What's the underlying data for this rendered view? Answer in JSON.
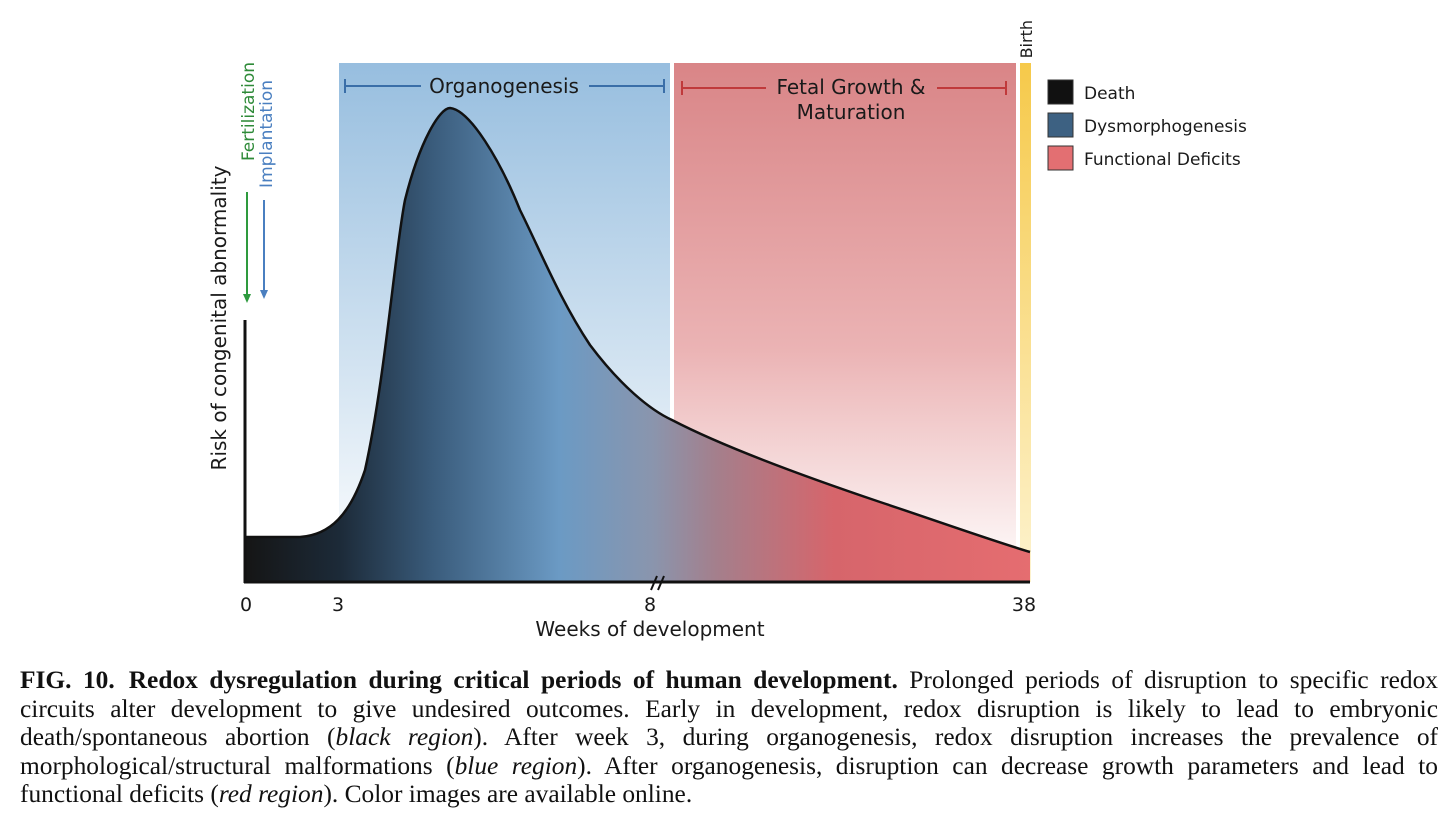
{
  "diagram": {
    "y_axis_label": "Risk of congenital abnormality",
    "x_axis_label": "Weeks of development",
    "x_ticks": [
      "0",
      "3",
      "8",
      "38"
    ],
    "periods": {
      "organogenesis": "Organogenesis",
      "fetal_line1": "Fetal Growth &",
      "fetal_line2": "Maturation"
    },
    "events": {
      "fertilization": "Fertilization",
      "implantation": "Implantation",
      "birth": "Birth"
    },
    "legend": [
      {
        "label": "Death",
        "color": "#111111"
      },
      {
        "label": "Dysmorphogenesis",
        "color": "#3d6182"
      },
      {
        "label": "Functional Deficits",
        "color": "#e36f72"
      }
    ],
    "colors": {
      "organogenesis_band": "#9fc3e0",
      "fetal_band": "#d98587",
      "birth_band": "#f7cf52",
      "fertilization_arrow": "#2e9a3e",
      "implantation_arrow": "#4a7fc0",
      "organogenesis_bracket": "#3a6ea8",
      "fetal_bracket": "#c0393b"
    }
  },
  "caption": {
    "figure_number": "FIG. 10.",
    "title": "Redox dysregulation during critical periods of human development.",
    "text_1": " Prolonged periods of disruption to specific redox circuits alter development to give undesired outcomes. Early in development, redox disruption is likely to lead to embryonic death/spontaneous abortion (",
    "italic_1": "black region",
    "text_2": "). After week 3, during organogenesis, redox disruption increases the prevalence of morphological/structural malformations (",
    "italic_2": "blue region",
    "text_3": "). After organogenesis, disruption can decrease growth parameters and lead to functional deficits (",
    "italic_3": "red region",
    "text_4": "). Color images are available online."
  }
}
